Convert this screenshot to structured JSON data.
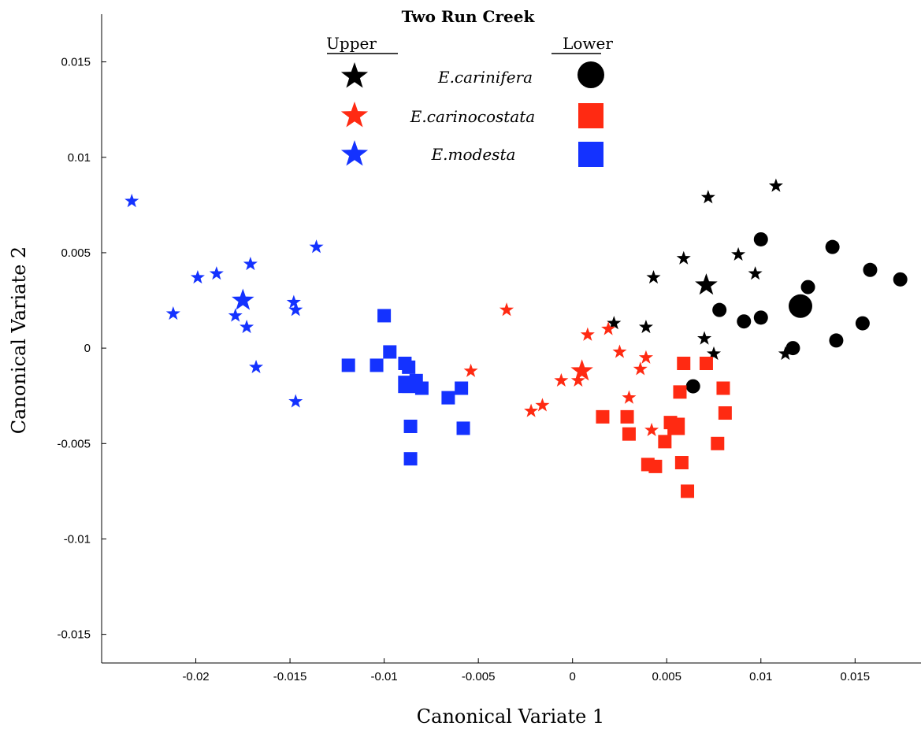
{
  "chart_data": {
    "type": "scatter",
    "title": "Two Run Creek",
    "xlabel": "Canonical Variate 1",
    "ylabel": "Canonical Variate 2",
    "xlim": [
      -0.025,
      0.0185
    ],
    "ylim": [
      -0.0165,
      0.0175
    ],
    "x_ticks": [
      -0.02,
      -0.015,
      -0.01,
      -0.005,
      0,
      0.005,
      0.01,
      0.015
    ],
    "x_tick_labels": [
      "-0.02",
      "-0.015",
      "-0.01",
      "-0.005",
      "0",
      "0.005",
      "0.01",
      "0.015"
    ],
    "y_ticks": [
      0.015,
      0.01,
      0.005,
      0,
      -0.005,
      -0.01,
      -0.015
    ],
    "y_tick_labels": [
      "0.015",
      "0.01",
      "0.005",
      "0",
      "-0.005",
      "-0.01",
      "-0.015"
    ],
    "grid": false,
    "legend": {
      "placement": "top-center",
      "upper_header": "Upper",
      "lower_header": "Lower",
      "entries": [
        "E.carinifera",
        "E.carinocostata",
        "E.modesta"
      ]
    },
    "colors": {
      "carinifera": "#000000",
      "carinocostata": "#ff2a12",
      "modesta": "#1432ff"
    },
    "series": [
      {
        "name": "E.carinifera",
        "group": "Upper",
        "marker": "star",
        "color": "#000000",
        "points": [
          [
            0.0022,
            0.0013
          ],
          [
            0.0039,
            0.0011
          ],
          [
            0.0043,
            0.0037
          ],
          [
            0.0059,
            0.0047
          ],
          [
            0.0072,
            0.0079
          ],
          [
            0.007,
            0.0005
          ],
          [
            0.0075,
            -0.0003
          ],
          [
            0.0088,
            0.0049
          ],
          [
            0.0097,
            0.0039
          ],
          [
            0.0108,
            0.0085
          ],
          [
            0.0113,
            -0.0003
          ]
        ],
        "mean": [
          0.0071,
          0.0033
        ]
      },
      {
        "name": "E.carinifera",
        "group": "Lower",
        "marker": "circle",
        "color": "#000000",
        "points": [
          [
            0.0064,
            -0.002
          ],
          [
            0.0078,
            0.002
          ],
          [
            0.0091,
            0.0014
          ],
          [
            0.01,
            0.0057
          ],
          [
            0.01,
            0.0016
          ],
          [
            0.0117,
            0.0
          ],
          [
            0.0125,
            0.0032
          ],
          [
            0.0138,
            0.0053
          ],
          [
            0.014,
            0.0004
          ],
          [
            0.0154,
            0.0013
          ],
          [
            0.0158,
            0.0041
          ],
          [
            0.0174,
            0.0036
          ]
        ],
        "mean": [
          0.0121,
          0.0022
        ]
      },
      {
        "name": "E.carinocostata",
        "group": "Upper",
        "marker": "star",
        "color": "#ff2a12",
        "points": [
          [
            -0.0035,
            0.002
          ],
          [
            -0.0054,
            -0.0012
          ],
          [
            -0.0022,
            -0.0033
          ],
          [
            -0.0016,
            -0.003
          ],
          [
            -0.0006,
            -0.0017
          ],
          [
            0.0003,
            -0.0017
          ],
          [
            0.0008,
            0.0007
          ],
          [
            0.0019,
            0.001
          ],
          [
            0.0025,
            -0.0002
          ],
          [
            0.003,
            -0.0026
          ],
          [
            0.0036,
            -0.0011
          ],
          [
            0.0039,
            -0.0005
          ],
          [
            0.0042,
            -0.0043
          ]
        ],
        "mean": [
          0.0005,
          -0.0012
        ]
      },
      {
        "name": "E.carinocostata",
        "group": "Lower",
        "marker": "square",
        "color": "#ff2a12",
        "points": [
          [
            0.0016,
            -0.0036
          ],
          [
            0.0029,
            -0.0036
          ],
          [
            0.003,
            -0.0045
          ],
          [
            0.004,
            -0.0061
          ],
          [
            0.0044,
            -0.0062
          ],
          [
            0.0049,
            -0.0049
          ],
          [
            0.0052,
            -0.0039
          ],
          [
            0.0057,
            -0.0023
          ],
          [
            0.0058,
            -0.006
          ],
          [
            0.0059,
            -0.0008
          ],
          [
            0.0061,
            -0.0075
          ],
          [
            0.0071,
            -0.0008
          ],
          [
            0.0077,
            -0.005
          ],
          [
            0.008,
            -0.0021
          ],
          [
            0.0081,
            -0.0034
          ]
        ],
        "mean": [
          0.0055,
          -0.0041
        ]
      },
      {
        "name": "E.modesta",
        "group": "Upper",
        "marker": "star",
        "color": "#1432ff",
        "points": [
          [
            -0.0234,
            0.0077
          ],
          [
            -0.0212,
            0.0018
          ],
          [
            -0.0199,
            0.0037
          ],
          [
            -0.0189,
            0.0039
          ],
          [
            -0.0179,
            0.0017
          ],
          [
            -0.0173,
            0.0011
          ],
          [
            -0.0171,
            0.0044
          ],
          [
            -0.0168,
            -0.001
          ],
          [
            -0.0148,
            0.0024
          ],
          [
            -0.0147,
            0.002
          ],
          [
            -0.0147,
            -0.0028
          ],
          [
            -0.0136,
            0.0053
          ]
        ],
        "mean": [
          -0.0175,
          0.0025
        ]
      },
      {
        "name": "E.modesta",
        "group": "Lower",
        "marker": "square",
        "color": "#1432ff",
        "points": [
          [
            -0.0119,
            -0.0009
          ],
          [
            -0.0104,
            -0.0009
          ],
          [
            -0.01,
            0.0017
          ],
          [
            -0.0097,
            -0.0002
          ],
          [
            -0.0089,
            -0.0008
          ],
          [
            -0.0087,
            -0.001
          ],
          [
            -0.0087,
            -0.002
          ],
          [
            -0.0086,
            -0.0041
          ],
          [
            -0.0086,
            -0.0058
          ],
          [
            -0.0083,
            -0.0017
          ],
          [
            -0.008,
            -0.0021
          ],
          [
            -0.0066,
            -0.0026
          ],
          [
            -0.0059,
            -0.0021
          ],
          [
            -0.0058,
            -0.0042
          ]
        ],
        "mean": [
          -0.0088,
          -0.0019
        ]
      }
    ]
  }
}
